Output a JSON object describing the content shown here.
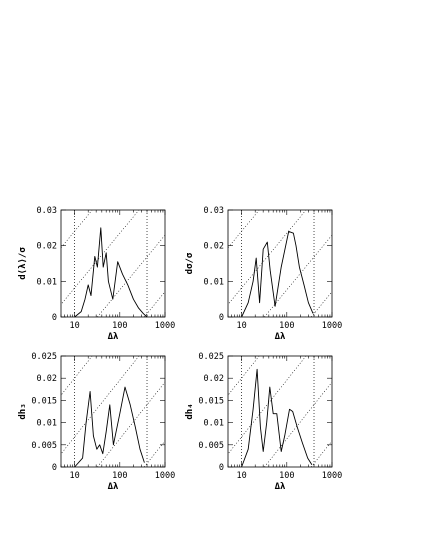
{
  "chart_data": [
    {
      "type": "line",
      "xlabel": "Δλ",
      "ylabel": "d⟨λ⟩/σ",
      "xscale": "log",
      "xlim": [
        5,
        1000
      ],
      "ylim": [
        0,
        0.03
      ],
      "xticks": [
        10,
        100,
        1000
      ],
      "xtick_labels": [
        "10",
        "100",
        "1000"
      ],
      "yticks": [
        0,
        0.01,
        0.02,
        0.03
      ],
      "ytick_labels": [
        "0",
        "0.01",
        "0.02",
        "0.03"
      ],
      "vlines": [
        10,
        400
      ],
      "series": [
        {
          "x": [
            10,
            14,
            17,
            20,
            23,
            28,
            32,
            38,
            43,
            50,
            56,
            70,
            90,
            115,
            150,
            200,
            260,
            330,
            400
          ],
          "y": [
            0,
            0.0015,
            0.005,
            0.009,
            0.006,
            0.017,
            0.014,
            0.025,
            0.014,
            0.018,
            0.01,
            0.005,
            0.0155,
            0.012,
            0.009,
            0.005,
            0.0025,
            0.001,
            0
          ]
        }
      ]
    },
    {
      "type": "line",
      "xlabel": "Δλ",
      "ylabel": "dσ/σ",
      "xscale": "log",
      "xlim": [
        5,
        1000
      ],
      "ylim": [
        0,
        0.03
      ],
      "xticks": [
        10,
        100,
        1000
      ],
      "xtick_labels": [
        "10",
        "100",
        "1000"
      ],
      "yticks": [
        0,
        0.01,
        0.02,
        0.03
      ],
      "ytick_labels": [
        "0",
        "0.01",
        "0.02",
        "0.03"
      ],
      "vlines": [
        10,
        400
      ],
      "series": [
        {
          "x": [
            10,
            14,
            18,
            21,
            25,
            30,
            37,
            43,
            55,
            75,
            110,
            140,
            160,
            190,
            240,
            300,
            380
          ],
          "y": [
            0,
            0.004,
            0.01,
            0.0165,
            0.004,
            0.019,
            0.021,
            0.013,
            0.003,
            0.014,
            0.024,
            0.0235,
            0.02,
            0.014,
            0.009,
            0.004,
            0.001
          ]
        }
      ]
    },
    {
      "type": "line",
      "xlabel": "Δλ",
      "ylabel": "dh₃",
      "xscale": "log",
      "xlim": [
        5,
        1000
      ],
      "ylim": [
        0,
        0.025
      ],
      "xticks": [
        10,
        100,
        1000
      ],
      "xtick_labels": [
        "10",
        "100",
        "1000"
      ],
      "yticks": [
        0,
        0.005,
        0.01,
        0.015,
        0.02,
        0.025
      ],
      "ytick_labels": [
        "0",
        "0.005",
        "0.01",
        "0.015",
        "0.02",
        "0.025"
      ],
      "vlines": [
        10,
        400
      ],
      "series": [
        {
          "x": [
            10,
            15,
            18,
            22,
            26,
            31,
            36,
            42,
            50,
            60,
            72,
            100,
            130,
            170,
            220,
            280,
            350
          ],
          "y": [
            0,
            0.002,
            0.01,
            0.017,
            0.007,
            0.004,
            0.005,
            0.003,
            0.008,
            0.014,
            0.005,
            0.012,
            0.018,
            0.014,
            0.009,
            0.004,
            0.001
          ]
        }
      ]
    },
    {
      "type": "line",
      "xlabel": "Δλ",
      "ylabel": "dh₄",
      "xscale": "log",
      "xlim": [
        5,
        1000
      ],
      "ylim": [
        0,
        0.025
      ],
      "xticks": [
        10,
        100,
        1000
      ],
      "xtick_labels": [
        "10",
        "100",
        "1000"
      ],
      "yticks": [
        0,
        0.005,
        0.01,
        0.015,
        0.02,
        0.025
      ],
      "ytick_labels": [
        "0",
        "0.005",
        "0.01",
        "0.015",
        "0.02",
        "0.025"
      ],
      "vlines": [
        10,
        400
      ],
      "series": [
        {
          "x": [
            10,
            14,
            18,
            22,
            26,
            30,
            36,
            42,
            50,
            60,
            75,
            90,
            115,
            135,
            170,
            220,
            290,
            360
          ],
          "y": [
            0,
            0.004,
            0.013,
            0.022,
            0.009,
            0.0035,
            0.01,
            0.018,
            0.012,
            0.012,
            0.0035,
            0.007,
            0.013,
            0.0125,
            0.009,
            0.0055,
            0.002,
            0.0005
          ]
        }
      ]
    }
  ]
}
